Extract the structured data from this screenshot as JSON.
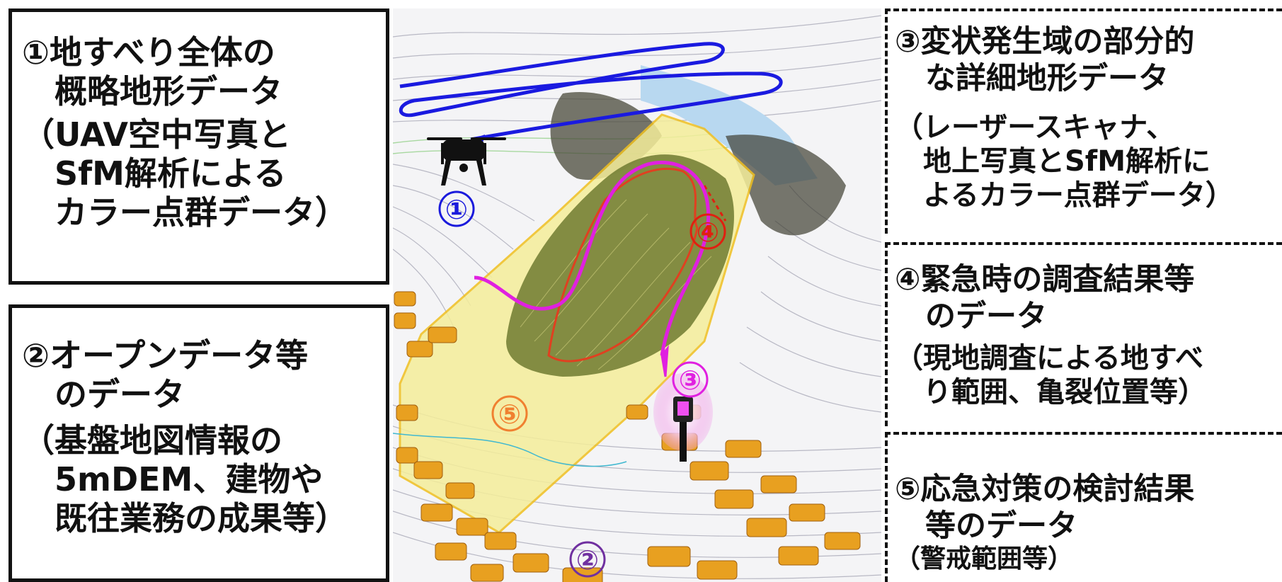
{
  "boxes": {
    "b1": {
      "heading": "①地すべり全体の\n　概略地形データ",
      "sub": "（UAV空中写真と\n　SfM解析による\n　カラー点群データ）"
    },
    "b2": {
      "heading": "②オープンデータ等\n　のデータ",
      "sub": "（基盤地図情報の\n　5mDEM、建物や\n　既往業務の成果等）"
    },
    "b3": {
      "heading": "③変状発生域の部分的\n　な詳細地形データ",
      "sub": "（レーザースキャナ、\n　地上写真とSfM解析に\n　よるカラー点群データ）"
    },
    "b4": {
      "heading": "④緊急時の調査結果等\n　のデータ",
      "sub": "（現地調査による地すべ\n　り範囲、亀裂位置等）"
    },
    "b5": {
      "heading": "⑤応急対策の検討結果\n　等のデータ",
      "sub": "（警戒範囲等）"
    }
  },
  "map_markers": {
    "m1": {
      "label": "①",
      "color": "#1a1adc"
    },
    "m2": {
      "label": "②",
      "color": "#7030a0"
    },
    "m3": {
      "label": "③",
      "color": "#e020e0"
    },
    "m4": {
      "label": "④",
      "color": "#e02010"
    },
    "m5": {
      "label": "⑤",
      "color": "#f08030"
    }
  },
  "colors": {
    "flight_path": "#1a1ae0",
    "survey_route": "#e020e0",
    "landslide_outline": "#f0c020",
    "building": "#e8a020",
    "fill": "#f5ee9a",
    "vegetation": "#6e7a30"
  }
}
